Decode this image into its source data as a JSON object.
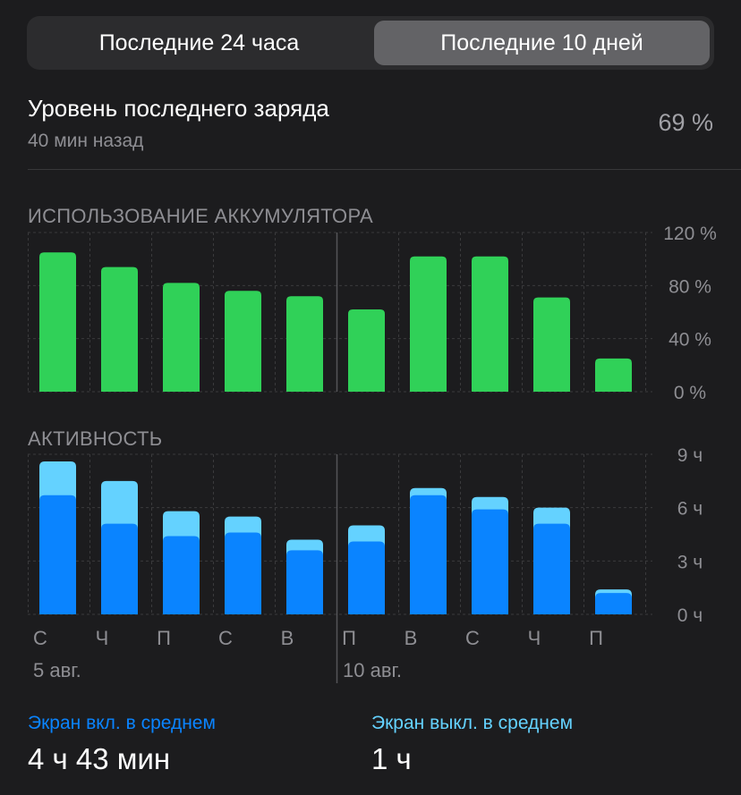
{
  "segmented": {
    "options": [
      "Последние 24 часа",
      "Последние 10 дней"
    ],
    "selected": "Последние 10 дней"
  },
  "last_charge": {
    "title": "Уровень последнего заряда",
    "time": "40 мин назад",
    "value": "69 %"
  },
  "colors": {
    "battery": "#30d158",
    "screen_on": "#0a84ff",
    "screen_off": "#64d2ff",
    "background": "#1c1c1e"
  },
  "battery_section": {
    "label": "ИСПОЛЬЗОВАНИЕ АККУМУЛЯТОРА"
  },
  "activity_section": {
    "label": "АКТИВНОСТЬ"
  },
  "chart_data": [
    {
      "type": "bar",
      "title": "ИСПОЛЬЗОВАНИЕ АККУМУЛЯТОРА",
      "categories": [
        "С",
        "Ч",
        "П",
        "С",
        "В",
        "П",
        "В",
        "С",
        "Ч",
        "П"
      ],
      "values": [
        105,
        94,
        82,
        76,
        72,
        62,
        102,
        102,
        71,
        25
      ],
      "yticks": [
        "120 %",
        "80 %",
        "40 %",
        "0 %"
      ],
      "ylim": [
        0,
        120
      ],
      "grid": true
    },
    {
      "type": "bar",
      "stacked": true,
      "title": "АКТИВНОСТЬ",
      "categories": [
        "С",
        "Ч",
        "П",
        "С",
        "В",
        "П",
        "В",
        "С",
        "Ч",
        "П"
      ],
      "date_labels": [
        "5 авг.",
        "10 авг."
      ],
      "series": [
        {
          "values": [
            6.7,
            5.1,
            4.4,
            4.6,
            3.6,
            4.1,
            6.7,
            5.9,
            5.1,
            1.2
          ]
        },
        {
          "values": [
            1.9,
            2.4,
            1.4,
            0.9,
            0.6,
            0.9,
            0.4,
            0.7,
            0.9,
            0.2
          ]
        }
      ],
      "yticks": [
        "9 ч",
        "6 ч",
        "3 ч",
        "0 ч"
      ],
      "ylim": [
        0,
        9
      ],
      "grid": true
    }
  ],
  "stats": {
    "screen_on_label": "Экран вкл. в среднем",
    "screen_on_value": "4 ч 43 мин",
    "screen_off_label": "Экран выкл. в среднем",
    "screen_off_value": "1 ч"
  }
}
